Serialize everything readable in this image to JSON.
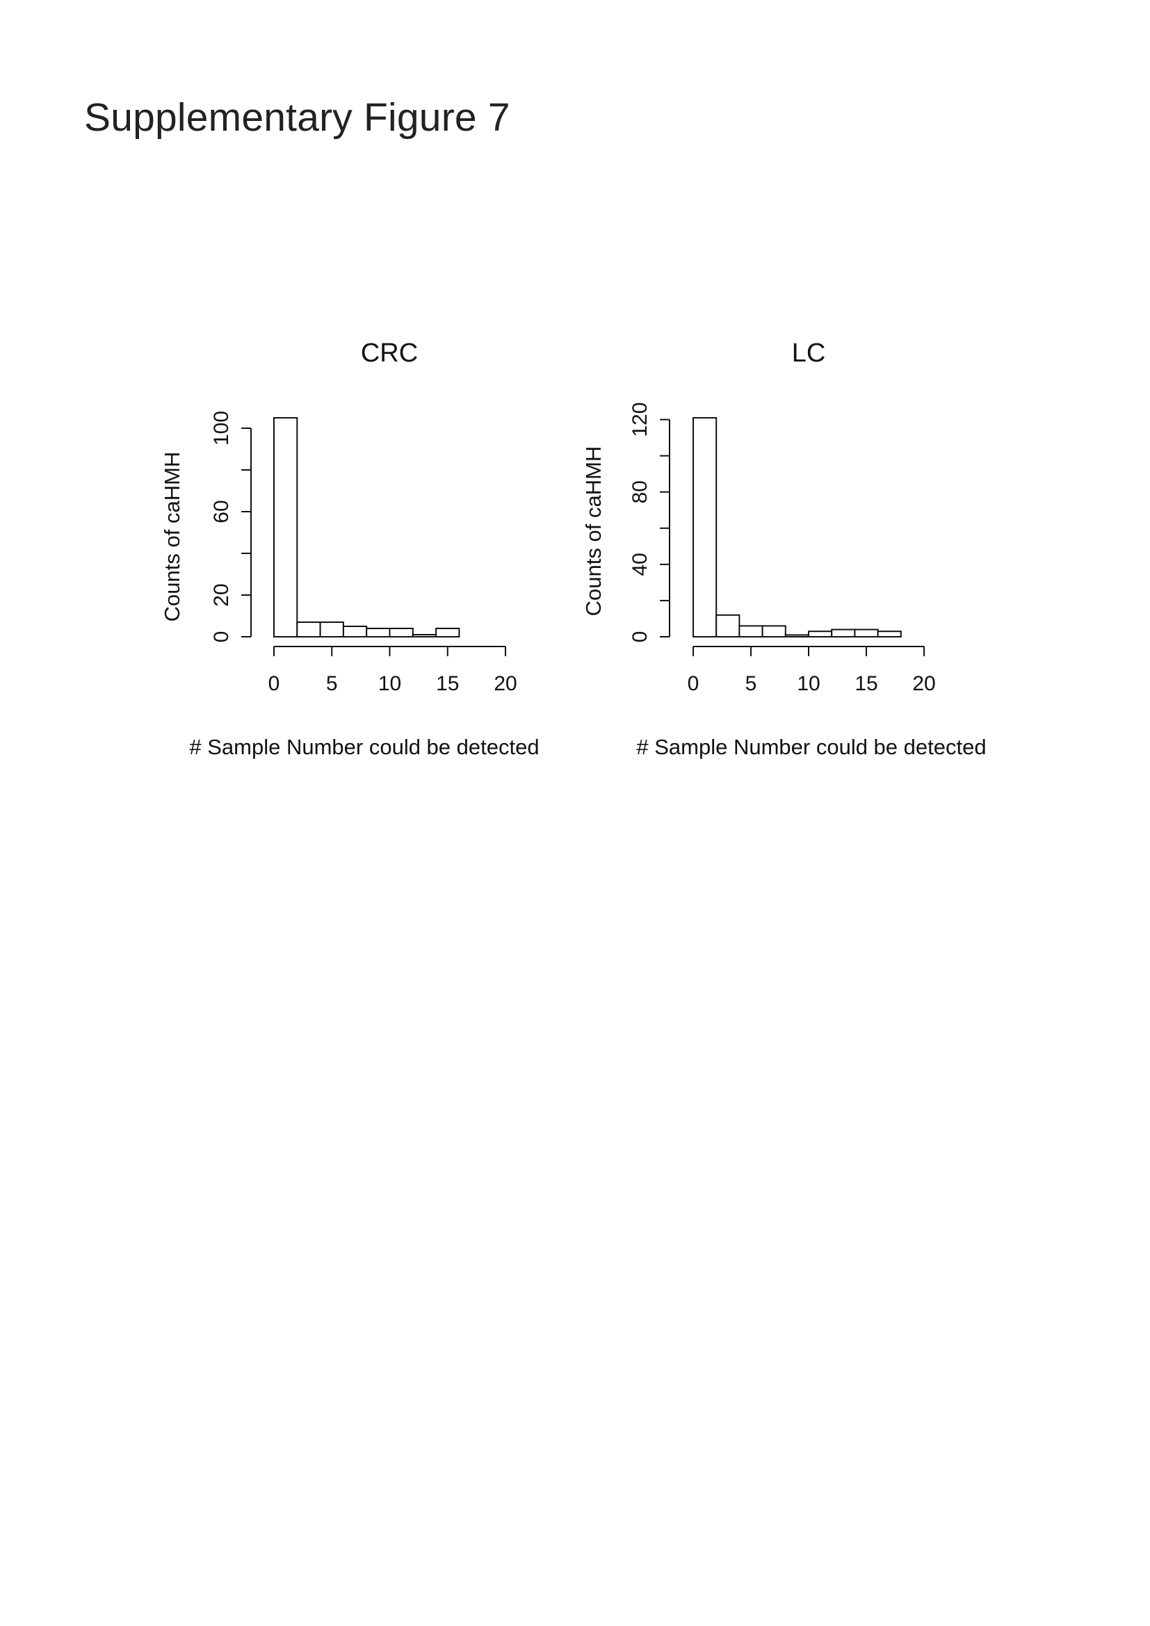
{
  "page": {
    "title": "Supplementary Figure 7"
  },
  "chart_data": [
    {
      "type": "bar",
      "title": "CRC",
      "xlabel": "# Sample Number could be detected",
      "ylabel": "Counts of caHMH",
      "bin_edges": [
        0,
        2,
        4,
        6,
        8,
        10,
        12,
        14,
        16
      ],
      "values": [
        105,
        7,
        7,
        5,
        4,
        4,
        1,
        4
      ],
      "xlim": [
        0,
        20
      ],
      "ylim": [
        0,
        105
      ],
      "x_ticks": [
        0,
        5,
        10,
        15,
        20
      ],
      "y_ticks_minor": [
        0,
        20,
        40,
        60,
        80,
        100
      ],
      "y_tick_labels": [
        {
          "value": 0,
          "label": "0"
        },
        {
          "value": 20,
          "label": "20"
        },
        {
          "value": 60,
          "label": "60"
        },
        {
          "value": 100,
          "label": "100"
        }
      ],
      "grid": false
    },
    {
      "type": "bar",
      "title": "LC",
      "xlabel": "# Sample Number could be detected",
      "ylabel": "Counts of caHMH",
      "bin_edges": [
        0,
        2,
        4,
        6,
        8,
        10,
        12,
        14,
        16,
        18
      ],
      "values": [
        121,
        12,
        6,
        6,
        1,
        3,
        4,
        4,
        3
      ],
      "xlim": [
        0,
        20
      ],
      "ylim": [
        0,
        121
      ],
      "x_ticks": [
        0,
        5,
        10,
        15,
        20
      ],
      "y_ticks_minor": [
        0,
        20,
        40,
        60,
        80,
        100,
        120
      ],
      "y_tick_labels": [
        {
          "value": 0,
          "label": "0"
        },
        {
          "value": 40,
          "label": "40"
        },
        {
          "value": 80,
          "label": "80"
        },
        {
          "value": 120,
          "label": "120"
        }
      ],
      "grid": false
    }
  ]
}
